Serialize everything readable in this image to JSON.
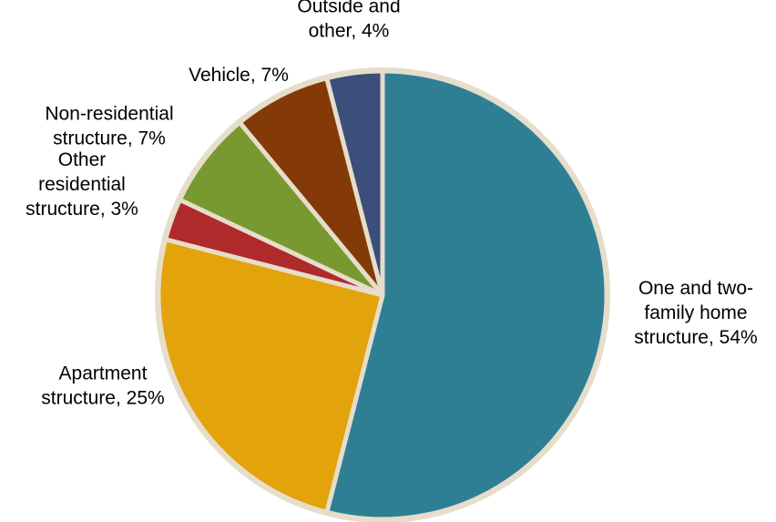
{
  "chart_data": {
    "type": "pie",
    "start_angle_deg": 0,
    "direction": "clockwise",
    "slices": [
      {
        "category": "One and two-family home structure",
        "value": 54,
        "label_lines": [
          "One and two-",
          "family home",
          "structure, 54%"
        ],
        "color": "#2E7F94"
      },
      {
        "category": "Apartment structure",
        "value": 25,
        "label_lines": [
          "Apartment",
          "structure, 25%"
        ],
        "color": "#E2A30B"
      },
      {
        "category": "Other residential structure",
        "value": 3,
        "label_lines": [
          "Other",
          "residential",
          "structure, 3%"
        ],
        "color": "#AE2A2B"
      },
      {
        "category": "Non-residential structure",
        "value": 7,
        "label_lines": [
          "Non-residential",
          "structure, 7%"
        ],
        "color": "#78992F"
      },
      {
        "category": "Vehicle",
        "value": 7,
        "label_lines": [
          "Vehicle, 7%"
        ],
        "color": "#843A08"
      },
      {
        "category": "Outside and other",
        "value": 4,
        "label_lines": [
          "Outside and",
          "other, 4%"
        ],
        "color": "#3C4F7A"
      }
    ],
    "separator_color": "#E6DDCB"
  }
}
